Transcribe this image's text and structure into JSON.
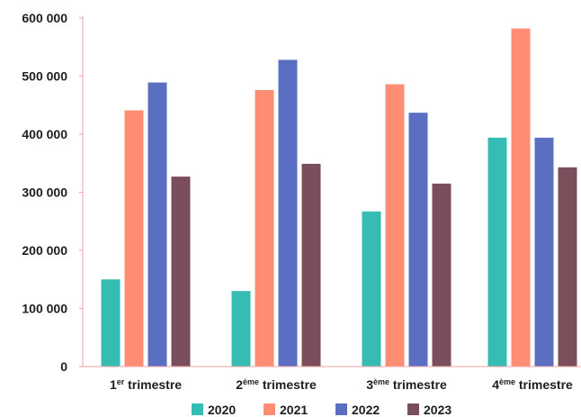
{
  "chart_data": {
    "type": "bar",
    "title": "",
    "xlabel": "",
    "ylabel": "",
    "categories": [
      {
        "main": "1",
        "sup": "er",
        "rest": " trimestre"
      },
      {
        "main": "2",
        "sup": "ème",
        "rest": " trimestre"
      },
      {
        "main": "3",
        "sup": "ème",
        "rest": " trimestre"
      },
      {
        "main": "4",
        "sup": "ème",
        "rest": " trimestre"
      }
    ],
    "series": [
      {
        "name": "2020",
        "color": "#35bdb4",
        "values": [
          150000,
          130000,
          267000,
          394000
        ]
      },
      {
        "name": "2021",
        "color": "#ff8d74",
        "values": [
          441000,
          476000,
          486000,
          582000
        ]
      },
      {
        "name": "2022",
        "color": "#5a6fc1",
        "values": [
          489000,
          528000,
          437000,
          394000
        ]
      },
      {
        "name": "2023",
        "color": "#7b4e5b",
        "values": [
          327000,
          349000,
          315000,
          343000
        ]
      }
    ],
    "ylim": [
      0,
      600000
    ],
    "yticks": [
      {
        "value": 0,
        "label": "0"
      },
      {
        "value": 100000,
        "label": "100 000"
      },
      {
        "value": 200000,
        "label": "200 000"
      },
      {
        "value": 300000,
        "label": "300 000"
      },
      {
        "value": 400000,
        "label": "400 000"
      },
      {
        "value": 500000,
        "label": "500 000"
      },
      {
        "value": 600000,
        "label": "600 000"
      }
    ],
    "grid": false,
    "legend_position": "bottom",
    "axis_color": "#f2a5a5"
  }
}
